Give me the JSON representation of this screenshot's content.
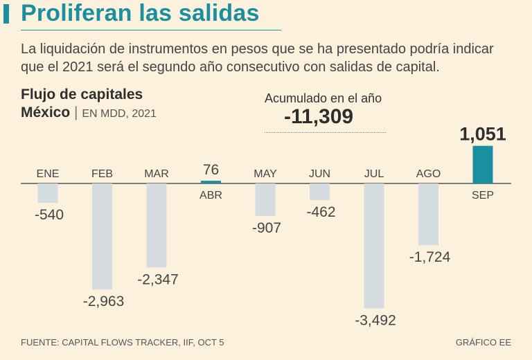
{
  "header": {
    "title": "Proliferan las salidas",
    "subtitle": "La liquidación de instrumentos en pesos que se ha presentado podría indicar que el 2021 será el segundo año consecutivo con salidas de capital."
  },
  "chart_header": {
    "line1": "Flujo de capitales",
    "country": "México",
    "separator": "|",
    "unit": "EN MDD, 2021"
  },
  "accumulated": {
    "label": "Acumulado en el año",
    "value": "-11,309"
  },
  "chart_data": {
    "type": "bar",
    "title": "Flujo de capitales México",
    "ylabel": "EN MDD, 2021",
    "xlabel": "",
    "categories": [
      "ENE",
      "FEB",
      "MAR",
      "ABR",
      "MAY",
      "JUN",
      "JUL",
      "AGO",
      "SEP"
    ],
    "values": [
      -540,
      -2963,
      -2347,
      76,
      -907,
      -462,
      -3492,
      -1724,
      1051
    ],
    "value_labels": [
      "-540",
      "-2,963",
      "-2,347",
      "76",
      "-907",
      "-462",
      "-3,492",
      "-1,724",
      "1,051"
    ],
    "ylim": [
      -3600,
      1200
    ],
    "grid": false,
    "colors": {
      "negative": "#d5dcdf",
      "positive": "#1a8fa0",
      "axis": "#555555"
    }
  },
  "footer": {
    "source": "FUENTE: CAPITAL FLOWS TRACKER, IIF, OCT 5",
    "credit": "GRÁFICO EE"
  },
  "colors": {
    "accent": "#1a8fa0",
    "background": "#fbf1dc"
  }
}
